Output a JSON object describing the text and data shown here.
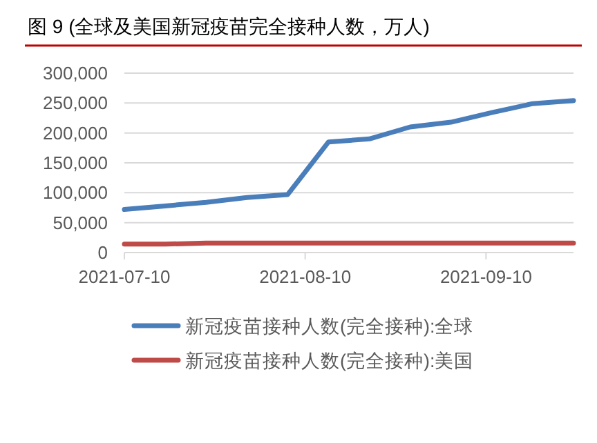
{
  "chart_data": {
    "type": "line",
    "title": "图 9 (全球及美国新冠疫苗完全接种人数，万人)",
    "x": [
      "2021-07-10",
      "2021-07-17",
      "2021-07-24",
      "2021-07-31",
      "2021-08-07",
      "2021-08-14",
      "2021-08-21",
      "2021-08-28",
      "2021-09-04",
      "2021-09-11",
      "2021-09-18",
      "2021-09-25"
    ],
    "series": [
      {
        "name": "新冠疫苗接种人数(完全接种):全球",
        "color": "#4a7ebb",
        "values": [
          72000,
          78000,
          84000,
          92000,
          97000,
          185000,
          190000,
          210000,
          218000,
          234000,
          249000,
          254000
        ]
      },
      {
        "name": "新冠疫苗接种人数(完全接种):美国",
        "color": "#be4b48",
        "values": [
          14000,
          14000,
          16000,
          16000,
          16000,
          16000,
          16000,
          16000,
          16000,
          16000,
          16000,
          16000
        ]
      }
    ],
    "xlim": [
      "2021-07-10",
      "2021-09-25"
    ],
    "xticks": [
      "2021-07-10",
      "2021-08-10",
      "2021-09-10"
    ],
    "ylim": [
      0,
      300000
    ],
    "yticks": [
      {
        "value": 0,
        "label": "0"
      },
      {
        "value": 50000,
        "label": "50,000"
      },
      {
        "value": 100000,
        "label": "100,000"
      },
      {
        "value": 150000,
        "label": "150,000"
      },
      {
        "value": 200000,
        "label": "200,000"
      },
      {
        "value": 250000,
        "label": "250,000"
      },
      {
        "value": 300000,
        "label": "300,000"
      }
    ],
    "grid": "y",
    "legend": "bottom"
  }
}
